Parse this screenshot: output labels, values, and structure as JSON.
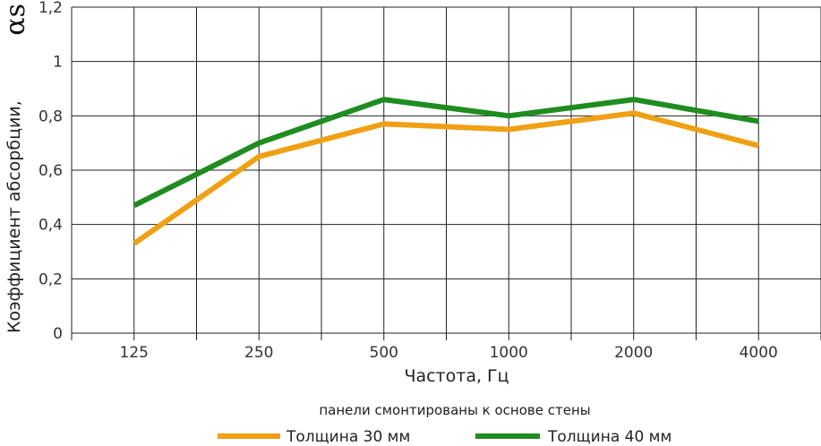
{
  "chart_data": {
    "type": "line",
    "categories": [
      "125",
      "250",
      "500",
      "1000",
      "2000",
      "4000"
    ],
    "series": [
      {
        "name": "Толщина 30 мм",
        "color": "#f0a014",
        "values": [
          0.33,
          0.65,
          0.77,
          0.75,
          0.81,
          0.69
        ]
      },
      {
        "name": "Толщина 40 мм",
        "color": "#1f8c1f",
        "values": [
          0.47,
          0.7,
          0.86,
          0.8,
          0.86,
          0.78
        ]
      }
    ],
    "ylim": [
      0,
      1.2
    ],
    "yticks": [
      "0",
      "0,2",
      "0,4",
      "0,6",
      "0,8",
      "1",
      "1,2"
    ],
    "ylabel": "Коэффициент абсорбции,",
    "ylabel_symbol": "αs",
    "xlabel": "Частота, Гц",
    "note": "панели смонтированы к основе стены",
    "grid": true,
    "legend": "bottom-center"
  }
}
